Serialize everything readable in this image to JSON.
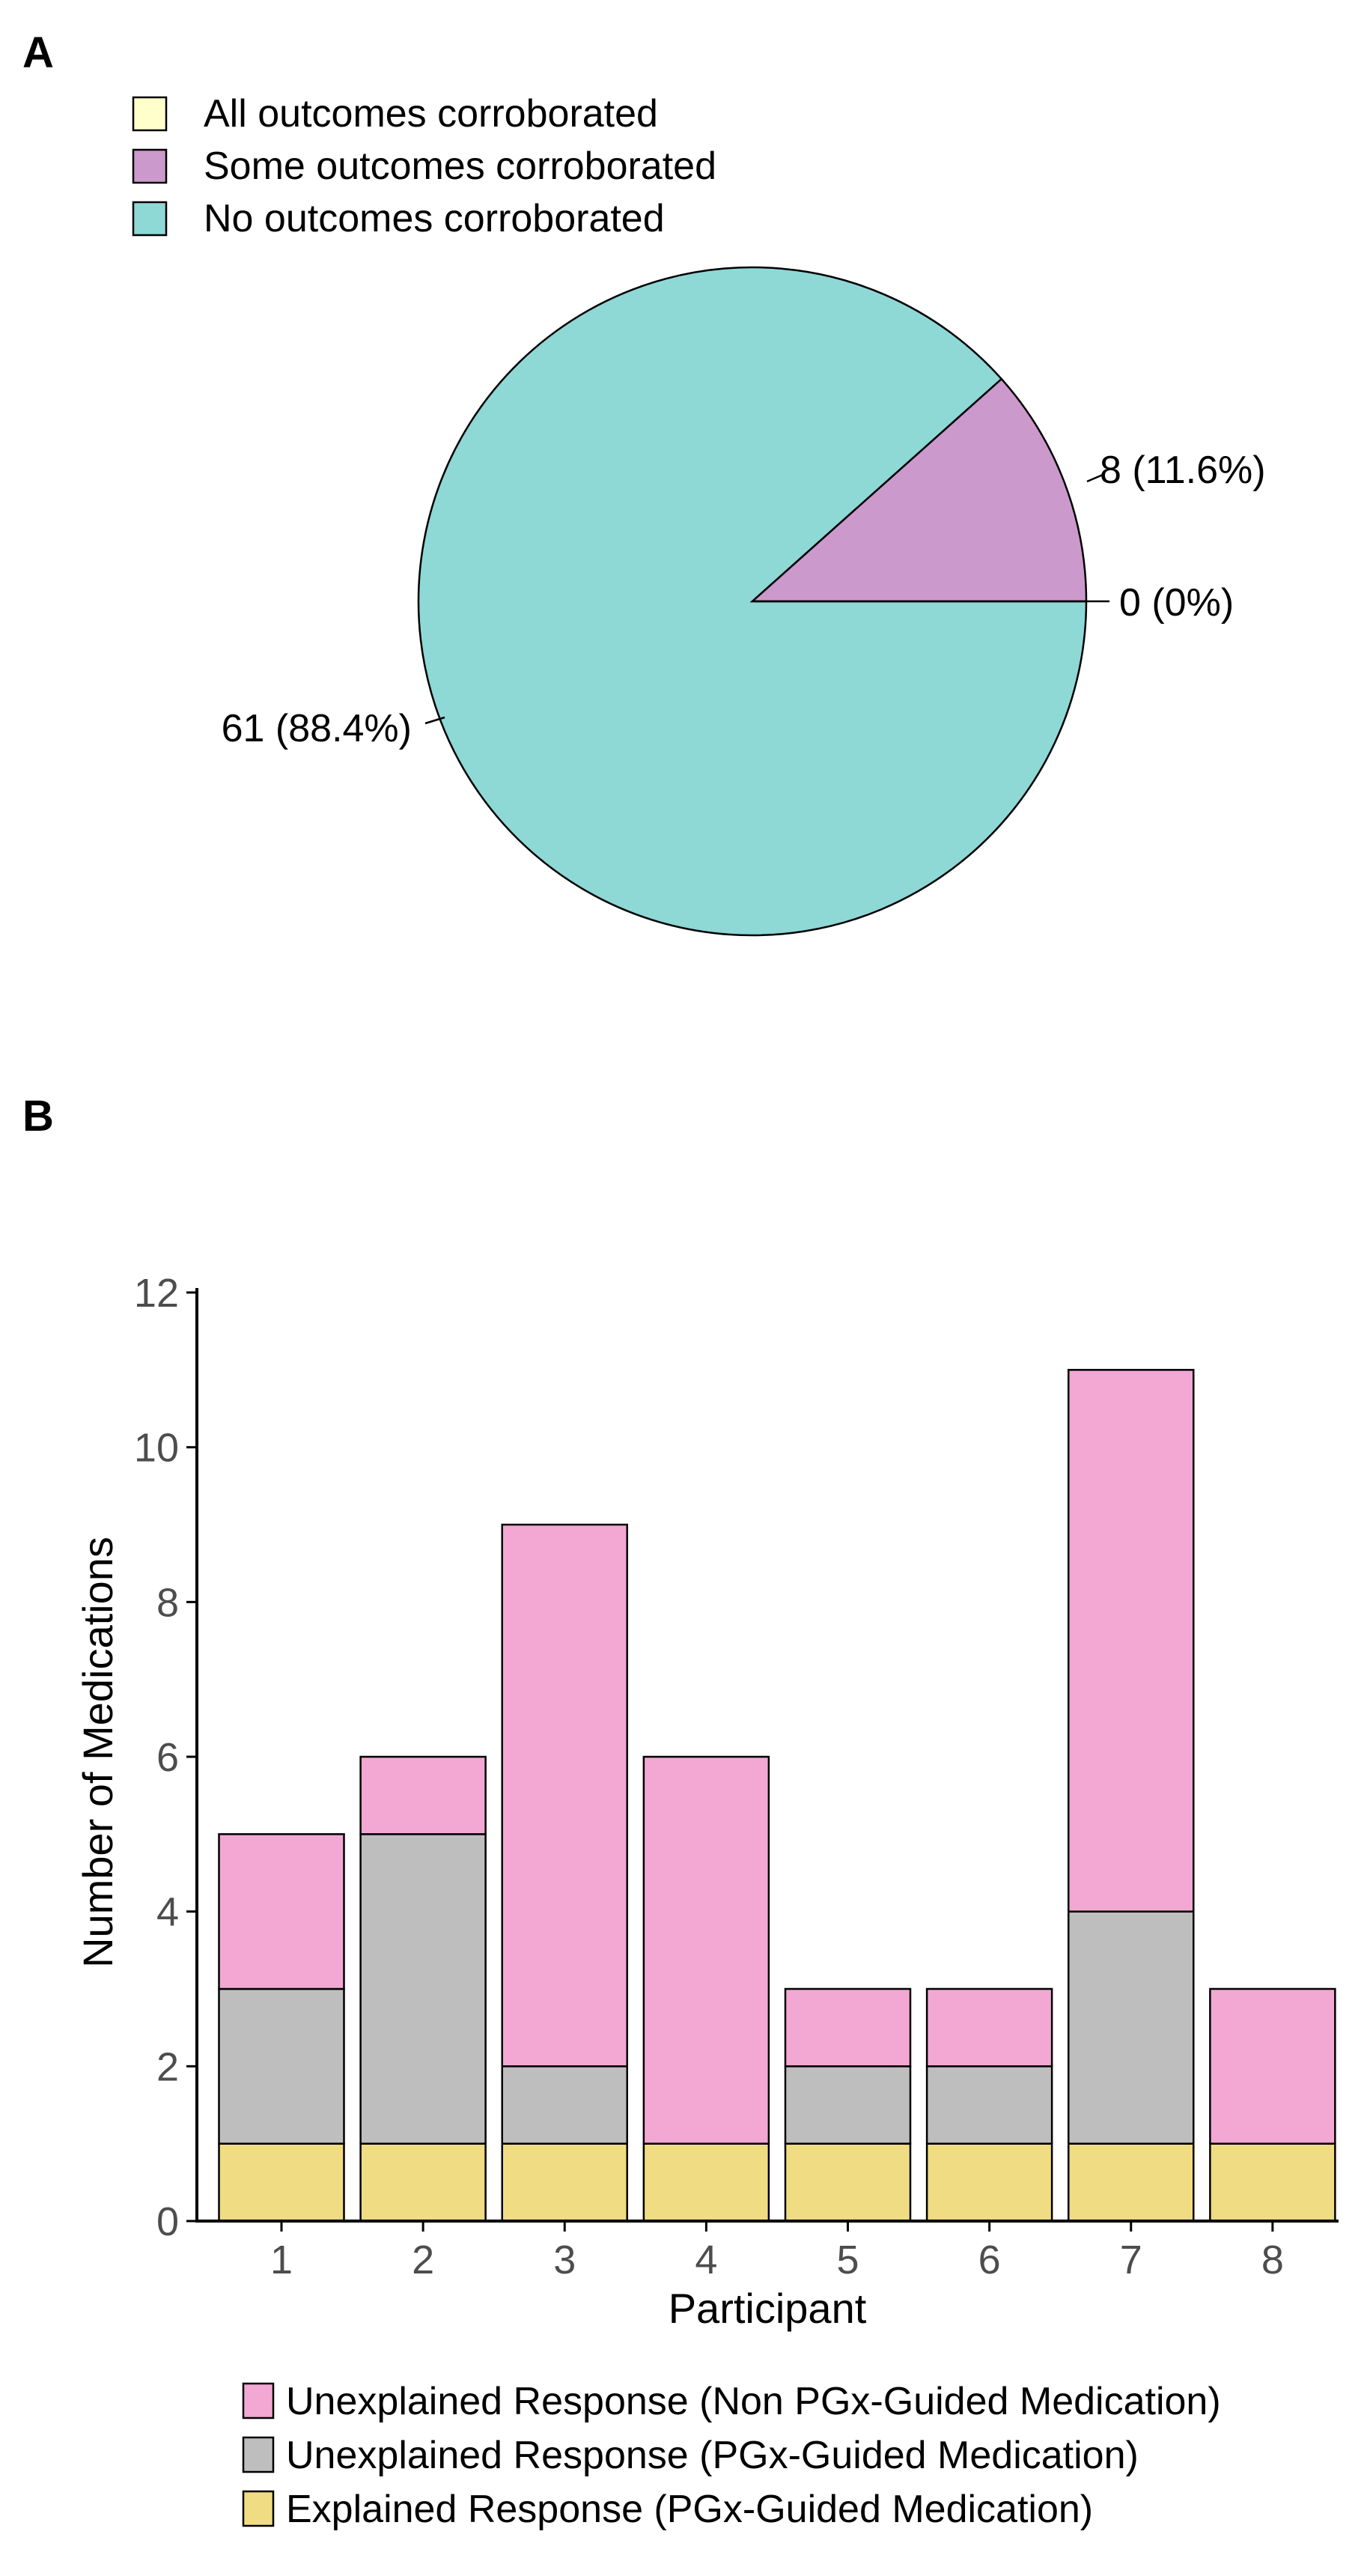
{
  "chart_data": [
    {
      "type": "pie",
      "panel_label": "A",
      "legend": [
        "All outcomes corroborated",
        "Some outcomes corroborated",
        "No outcomes corroborated"
      ],
      "slices": [
        {
          "name": "All outcomes corroborated",
          "value": 0,
          "label": "0 (0%)",
          "color": "#FFFFCC"
        },
        {
          "name": "Some outcomes corroborated",
          "value": 8,
          "label": "8 (11.6%)",
          "color": "#CC99CC"
        },
        {
          "name": "No outcomes corroborated",
          "value": 61,
          "label": "61 (88.4%)",
          "color": "#8ED8D6"
        }
      ]
    },
    {
      "type": "bar",
      "stacked": true,
      "panel_label": "B",
      "categories": [
        "1",
        "2",
        "3",
        "4",
        "5",
        "6",
        "7",
        "8"
      ],
      "xlabel": "Participant",
      "ylabel": "Number of Medications",
      "ylim": [
        0,
        12
      ],
      "yticks": [
        "0",
        "2",
        "4",
        "6",
        "8",
        "10",
        "12"
      ],
      "series": [
        {
          "name": "Explained Response (PGx-Guided Medication)",
          "values": [
            1,
            1,
            1,
            1,
            1,
            1,
            1,
            1
          ],
          "color": "#F0DC82"
        },
        {
          "name": "Unexplained Response (PGx-Guided Medication)",
          "values": [
            2,
            4,
            1,
            0,
            1,
            1,
            3,
            0
          ],
          "color": "#BEBEBE"
        },
        {
          "name": "Unexplained Response (Non PGx-Guided Medication)",
          "values": [
            2,
            1,
            7,
            5,
            1,
            1,
            7,
            2
          ],
          "color": "#F2A8D3"
        }
      ],
      "legend_order": [
        "Unexplained Response (Non PGx-Guided Medication)",
        "Unexplained Response (PGx-Guided Medication)",
        "Explained Response (PGx-Guided Medication)"
      ],
      "legend_colors": [
        "#F2A8D3",
        "#BEBEBE",
        "#F0DC82"
      ]
    }
  ]
}
